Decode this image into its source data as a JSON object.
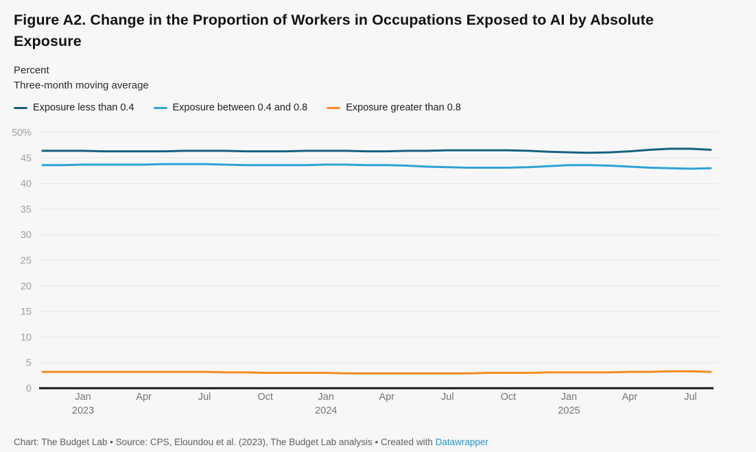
{
  "header": {
    "title": "Figure A2. Change in the Proportion of Workers in Occupations Exposed to AI by Absolute Exposure",
    "subtitle_line1": "Percent",
    "subtitle_line2": "Three-month moving average"
  },
  "legend": {
    "items": [
      {
        "label": "Exposure less than 0.4",
        "color": "#16607f"
      },
      {
        "label": "Exposure between 0.4 and 0.8",
        "color": "#2ba3d8"
      },
      {
        "label": "Exposure greater than 0.8",
        "color": "#f68c20"
      }
    ]
  },
  "footer": {
    "credit": "Chart: The Budget Lab • Source: CPS, Eloundou et al. (2023), The Budget Lab analysis • Created with ",
    "link_label": "Datawrapper",
    "link_color": "#2494c8"
  },
  "colors": {
    "background": "#f7f7f8",
    "grid": "#e5e5e5",
    "axis": "#161616",
    "y_tick_label": "#a0a0a0",
    "x_tick_label": "#757575"
  },
  "chart_data": {
    "type": "line",
    "title": "Figure A2. Change in the Proportion of Workers in Occupations Exposed to AI by Absolute Exposure",
    "ylabel": "Percent",
    "note": "Three-month moving average",
    "ylim": [
      0,
      50
    ],
    "ytick_step": 5,
    "ytick_top_label": "50%",
    "grid": "horizontal",
    "legend_position": "top-left",
    "x": [
      "Nov 2022",
      "Dec 2022",
      "Jan 2023",
      "Feb 2023",
      "Mar 2023",
      "Apr 2023",
      "May 2023",
      "Jun 2023",
      "Jul 2023",
      "Aug 2023",
      "Sep 2023",
      "Oct 2023",
      "Nov 2023",
      "Dec 2023",
      "Jan 2024",
      "Feb 2024",
      "Mar 2024",
      "Apr 2024",
      "May 2024",
      "Jun 2024",
      "Jul 2024",
      "Aug 2024",
      "Sep 2024",
      "Oct 2024",
      "Nov 2024",
      "Dec 2024",
      "Jan 2025",
      "Feb 2025",
      "Mar 2025",
      "Apr 2025",
      "May 2025",
      "Jun 2025",
      "Jul 2025",
      "Aug 2025"
    ],
    "x_ticks": [
      {
        "index": 2,
        "label": "Jan",
        "year": "2023"
      },
      {
        "index": 5,
        "label": "Apr"
      },
      {
        "index": 8,
        "label": "Jul"
      },
      {
        "index": 11,
        "label": "Oct"
      },
      {
        "index": 14,
        "label": "Jan",
        "year": "2024"
      },
      {
        "index": 17,
        "label": "Apr"
      },
      {
        "index": 20,
        "label": "Jul"
      },
      {
        "index": 23,
        "label": "Oct"
      },
      {
        "index": 26,
        "label": "Jan",
        "year": "2025"
      },
      {
        "index": 29,
        "label": "Apr"
      },
      {
        "index": 32,
        "label": "Jul"
      }
    ],
    "series": [
      {
        "name": "Exposure less than 0.4",
        "color": "#16607f",
        "values": [
          46.4,
          46.4,
          46.4,
          46.3,
          46.3,
          46.3,
          46.3,
          46.4,
          46.4,
          46.4,
          46.3,
          46.3,
          46.3,
          46.4,
          46.4,
          46.4,
          46.3,
          46.3,
          46.4,
          46.4,
          46.5,
          46.5,
          46.5,
          46.5,
          46.4,
          46.2,
          46.1,
          46.0,
          46.1,
          46.3,
          46.6,
          46.8,
          46.8,
          46.6
        ]
      },
      {
        "name": "Exposure between 0.4 and 0.8",
        "color": "#2ba3d8",
        "values": [
          43.6,
          43.6,
          43.7,
          43.7,
          43.7,
          43.7,
          43.8,
          43.8,
          43.8,
          43.7,
          43.6,
          43.6,
          43.6,
          43.6,
          43.7,
          43.7,
          43.6,
          43.6,
          43.5,
          43.3,
          43.2,
          43.1,
          43.1,
          43.1,
          43.2,
          43.4,
          43.6,
          43.6,
          43.5,
          43.3,
          43.1,
          43.0,
          42.9,
          43.0
        ]
      },
      {
        "name": "Exposure greater than 0.8",
        "color": "#f68c20",
        "values": [
          3.2,
          3.2,
          3.2,
          3.2,
          3.2,
          3.2,
          3.2,
          3.2,
          3.2,
          3.1,
          3.1,
          3.0,
          3.0,
          3.0,
          3.0,
          2.9,
          2.9,
          2.9,
          2.9,
          2.9,
          2.9,
          2.9,
          3.0,
          3.0,
          3.0,
          3.1,
          3.1,
          3.1,
          3.1,
          3.2,
          3.2,
          3.3,
          3.3,
          3.2
        ]
      }
    ]
  }
}
